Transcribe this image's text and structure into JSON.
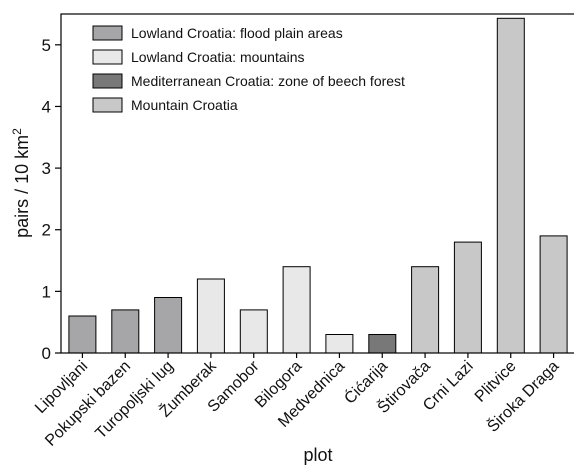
{
  "chart_data": {
    "type": "bar",
    "xlabel": "plot",
    "ylabel": "pairs / 10 km",
    "ylabel_superscript": "2",
    "ylim": [
      0,
      5.5
    ],
    "yticks": [
      0,
      1,
      2,
      3,
      4,
      5
    ],
    "legend_position": "top-left",
    "grid": false,
    "groups": [
      {
        "name": "Lowland Croatia: flood plain areas",
        "color": "#a6a6a8"
      },
      {
        "name": "Lowland Croatia: mountains",
        "color": "#e8e8e8"
      },
      {
        "name": "Mediterranean Croatia: zone of beech forest",
        "color": "#787878"
      },
      {
        "name": "Mountain Croatia",
        "color": "#c8c8c8"
      }
    ],
    "categories": [
      "Lipovljani",
      "Pokupski bazen",
      "Turopoljski lug",
      "Žumberak",
      "Samobor",
      "Bilogora",
      "Medvednica",
      "Ćićarija",
      "Štirovača",
      "Crni Lazi",
      "Plitvice",
      "Široka Draga"
    ],
    "values": [
      0.6,
      0.7,
      0.9,
      1.2,
      0.7,
      1.4,
      0.3,
      0.3,
      1.4,
      1.8,
      5.43,
      1.9
    ],
    "group_index": [
      0,
      0,
      0,
      1,
      1,
      1,
      1,
      2,
      3,
      3,
      3,
      3
    ]
  }
}
